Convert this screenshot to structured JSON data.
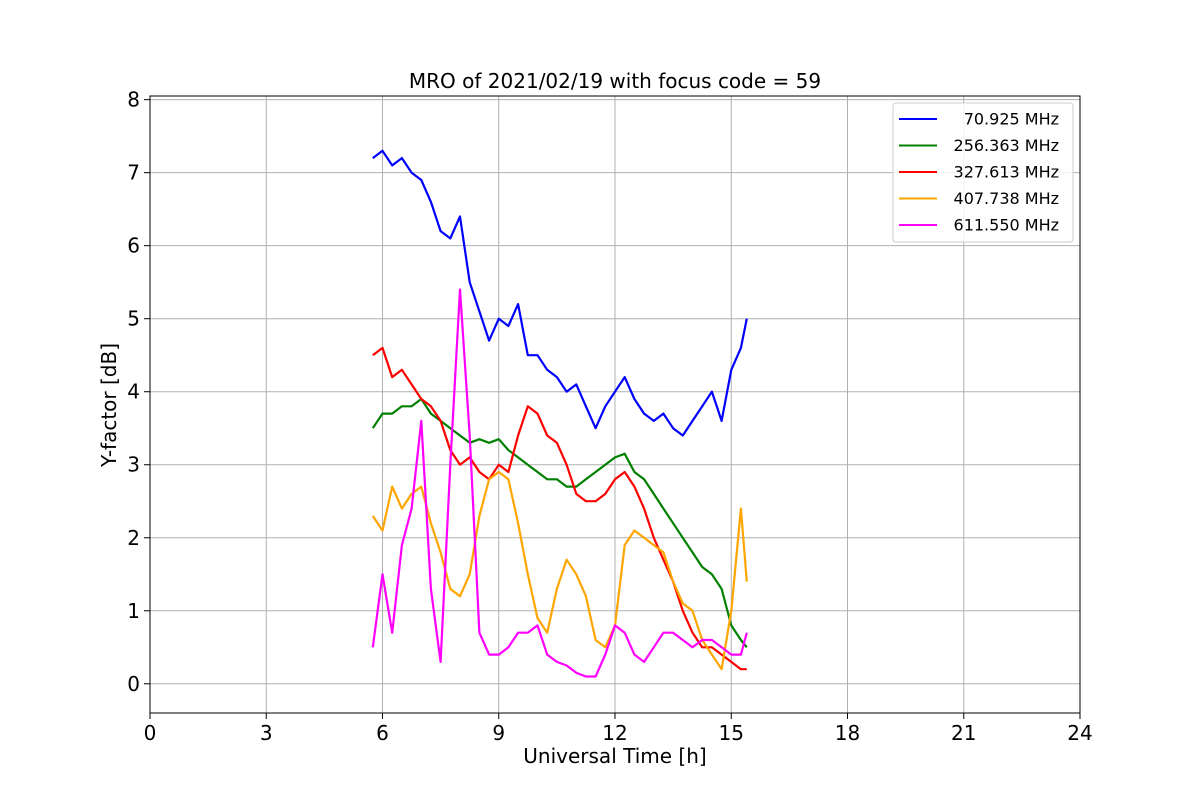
{
  "chart_data": {
    "type": "line",
    "title": "MRO of 2021/02/19 with focus code = 59",
    "xlabel": "Universal Time [h]",
    "ylabel": "Y-factor [dB]",
    "xlim": [
      0,
      24
    ],
    "ylim": [
      -0.4,
      8.05
    ],
    "xticks": [
      0,
      3,
      6,
      9,
      12,
      15,
      18,
      21,
      24
    ],
    "yticks": [
      0,
      1,
      2,
      3,
      4,
      5,
      6,
      7,
      8
    ],
    "grid": true,
    "legend_position": "top-right",
    "series": [
      {
        "name": "70.925 MHz",
        "color": "#0000ff",
        "x": [
          5.75,
          6.0,
          6.25,
          6.5,
          6.75,
          7.0,
          7.25,
          7.5,
          7.75,
          8.0,
          8.25,
          8.5,
          8.75,
          9.0,
          9.25,
          9.5,
          9.75,
          10.0,
          10.25,
          10.5,
          10.75,
          11.0,
          11.25,
          11.5,
          11.75,
          12.0,
          12.25,
          12.5,
          12.75,
          13.0,
          13.25,
          13.5,
          13.75,
          14.0,
          14.25,
          14.5,
          14.75,
          15.0,
          15.25,
          15.4
        ],
        "y": [
          7.2,
          7.3,
          7.1,
          7.2,
          7.0,
          6.9,
          6.6,
          6.2,
          6.1,
          6.4,
          5.5,
          5.1,
          4.7,
          5.0,
          4.9,
          5.2,
          4.5,
          4.5,
          4.3,
          4.2,
          4.0,
          4.1,
          3.8,
          3.5,
          3.8,
          4.0,
          4.2,
          3.9,
          3.7,
          3.6,
          3.7,
          3.5,
          3.4,
          3.6,
          3.8,
          4.0,
          3.6,
          4.3,
          4.6,
          5.0
        ]
      },
      {
        "name": "256.363 MHz",
        "color": "#008000",
        "x": [
          5.75,
          6.0,
          6.25,
          6.5,
          6.75,
          7.0,
          7.25,
          7.5,
          7.75,
          8.0,
          8.25,
          8.5,
          8.75,
          9.0,
          9.25,
          9.5,
          9.75,
          10.0,
          10.25,
          10.5,
          10.75,
          11.0,
          11.25,
          11.5,
          11.75,
          12.0,
          12.25,
          12.5,
          12.75,
          13.0,
          13.25,
          13.5,
          13.75,
          14.0,
          14.25,
          14.5,
          14.75,
          15.0,
          15.25,
          15.4
        ],
        "y": [
          3.5,
          3.7,
          3.7,
          3.8,
          3.8,
          3.9,
          3.7,
          3.6,
          3.5,
          3.4,
          3.3,
          3.35,
          3.3,
          3.35,
          3.2,
          3.1,
          3.0,
          2.9,
          2.8,
          2.8,
          2.7,
          2.7,
          2.8,
          2.9,
          3.0,
          3.1,
          3.15,
          2.9,
          2.8,
          2.6,
          2.4,
          2.2,
          2.0,
          1.8,
          1.6,
          1.5,
          1.3,
          0.8,
          0.6,
          0.5
        ]
      },
      {
        "name": "327.613 MHz",
        "color": "#ff0000",
        "x": [
          5.75,
          6.0,
          6.25,
          6.5,
          6.75,
          7.0,
          7.25,
          7.5,
          7.75,
          8.0,
          8.25,
          8.5,
          8.75,
          9.0,
          9.25,
          9.5,
          9.75,
          10.0,
          10.25,
          10.5,
          10.75,
          11.0,
          11.25,
          11.5,
          11.75,
          12.0,
          12.25,
          12.5,
          12.75,
          13.0,
          13.25,
          13.5,
          13.75,
          14.0,
          14.25,
          14.5,
          14.75,
          15.0,
          15.25,
          15.4
        ],
        "y": [
          4.5,
          4.6,
          4.2,
          4.3,
          4.1,
          3.9,
          3.8,
          3.6,
          3.2,
          3.0,
          3.1,
          2.9,
          2.8,
          3.0,
          2.9,
          3.4,
          3.8,
          3.7,
          3.4,
          3.3,
          3.0,
          2.6,
          2.5,
          2.5,
          2.6,
          2.8,
          2.9,
          2.7,
          2.4,
          2.0,
          1.7,
          1.4,
          1.0,
          0.7,
          0.5,
          0.5,
          0.4,
          0.3,
          0.2,
          0.2
        ]
      },
      {
        "name": "407.738 MHz",
        "color": "#ffa500",
        "x": [
          5.75,
          6.0,
          6.25,
          6.5,
          6.75,
          7.0,
          7.25,
          7.5,
          7.75,
          8.0,
          8.25,
          8.5,
          8.75,
          9.0,
          9.25,
          9.5,
          9.75,
          10.0,
          10.25,
          10.5,
          10.75,
          11.0,
          11.25,
          11.5,
          11.75,
          12.0,
          12.25,
          12.5,
          12.75,
          13.0,
          13.25,
          13.5,
          13.75,
          14.0,
          14.25,
          14.5,
          14.75,
          15.0,
          15.25,
          15.4
        ],
        "y": [
          2.3,
          2.1,
          2.7,
          2.4,
          2.6,
          2.7,
          2.2,
          1.8,
          1.3,
          1.2,
          1.5,
          2.3,
          2.8,
          2.9,
          2.8,
          2.2,
          1.5,
          0.9,
          0.7,
          1.3,
          1.7,
          1.5,
          1.2,
          0.6,
          0.5,
          0.8,
          1.9,
          2.1,
          2.0,
          1.9,
          1.8,
          1.4,
          1.1,
          1.0,
          0.6,
          0.4,
          0.2,
          1.0,
          2.4,
          1.4
        ]
      },
      {
        "name": "611.550 MHz",
        "color": "#ff00ff",
        "x": [
          5.75,
          6.0,
          6.25,
          6.5,
          6.75,
          7.0,
          7.25,
          7.5,
          7.75,
          8.0,
          8.25,
          8.5,
          8.75,
          9.0,
          9.25,
          9.5,
          9.75,
          10.0,
          10.25,
          10.5,
          10.75,
          11.0,
          11.25,
          11.5,
          11.75,
          12.0,
          12.25,
          12.5,
          12.75,
          13.0,
          13.25,
          13.5,
          13.75,
          14.0,
          14.25,
          14.5,
          14.75,
          15.0,
          15.25,
          15.4
        ],
        "y": [
          0.5,
          1.5,
          0.7,
          1.9,
          2.4,
          3.6,
          1.3,
          0.3,
          3.0,
          5.4,
          3.4,
          0.7,
          0.4,
          0.4,
          0.5,
          0.7,
          0.7,
          0.8,
          0.4,
          0.3,
          0.25,
          0.15,
          0.1,
          0.1,
          0.4,
          0.8,
          0.7,
          0.4,
          0.3,
          0.5,
          0.7,
          0.7,
          0.6,
          0.5,
          0.6,
          0.6,
          0.5,
          0.4,
          0.4,
          0.7
        ]
      }
    ]
  }
}
